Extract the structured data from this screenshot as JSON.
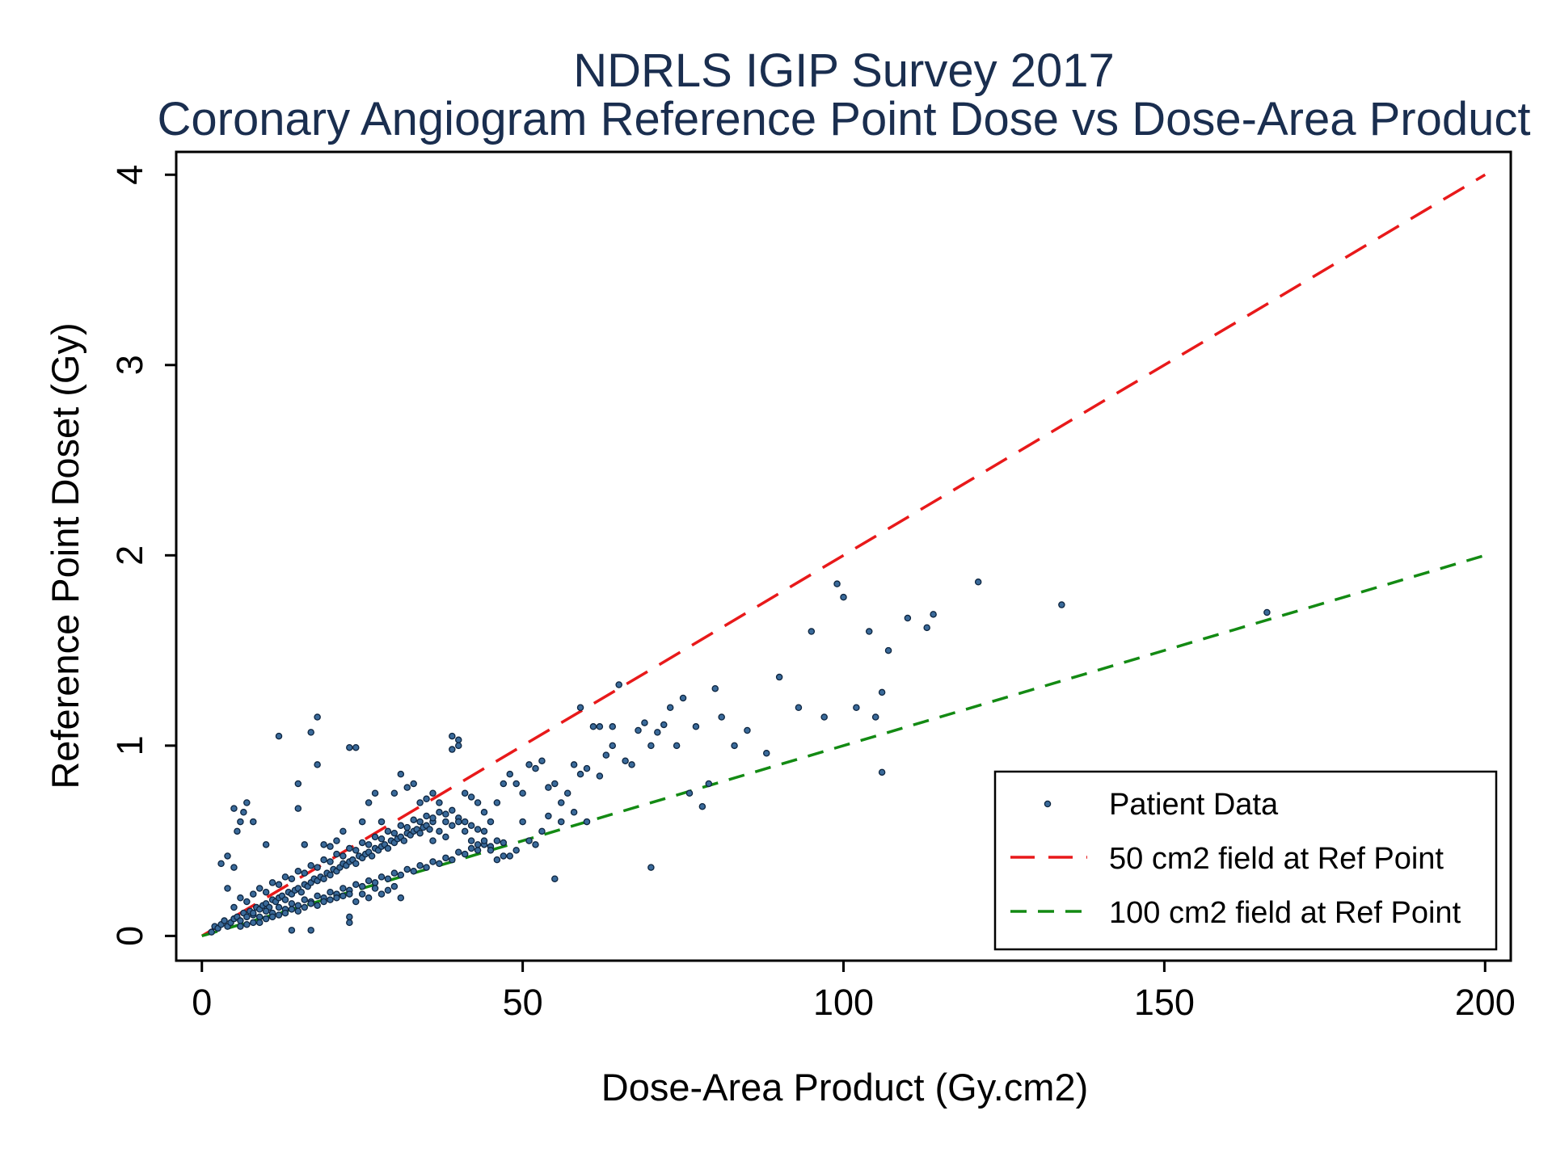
{
  "chart_data": {
    "type": "scatter",
    "title": "NDRLS IGIP Survey 2017",
    "subtitle": "Coronary Angiogram Reference Point Dose vs Dose-Area Product",
    "xlabel": "Dose-Area Product (Gy.cm2)",
    "ylabel": "Reference Point Doset (Gy)",
    "xlim": [
      -4,
      204
    ],
    "ylim": [
      -0.13,
      4.12
    ],
    "xticks": [
      0,
      50,
      100,
      150,
      200
    ],
    "yticks": [
      0,
      1,
      2,
      3,
      4
    ],
    "xtick_labels": [
      "0",
      "50",
      "100",
      "150",
      "200"
    ],
    "ytick_labels": [
      "0",
      "1",
      "2",
      "3",
      "4"
    ],
    "grid": false,
    "legend_position": "bottom-right",
    "colors": {
      "title": "#1a2e4f",
      "points_fill": "#3a6a9a",
      "points_stroke": "#0d2540",
      "line_50": "#e8191a",
      "line_100": "#138a13",
      "axis": "#000000"
    },
    "series": [
      {
        "name": "Patient Data",
        "kind": "scatter",
        "points": [
          [
            1.5,
            0.02
          ],
          [
            2,
            0.05
          ],
          [
            2.5,
            0.04
          ],
          [
            3,
            0.06
          ],
          [
            3.5,
            0.08
          ],
          [
            4,
            0.05
          ],
          [
            4.5,
            0.07
          ],
          [
            5,
            0.09
          ],
          [
            5.5,
            0.1
          ],
          [
            6,
            0.08
          ],
          [
            6.5,
            0.12
          ],
          [
            7,
            0.1
          ],
          [
            7.5,
            0.13
          ],
          [
            8,
            0.11
          ],
          [
            8.5,
            0.15
          ],
          [
            9,
            0.14
          ],
          [
            9.5,
            0.16
          ],
          [
            10,
            0.17
          ],
          [
            10.5,
            0.15
          ],
          [
            11,
            0.19
          ],
          [
            11.5,
            0.18
          ],
          [
            12,
            0.2
          ],
          [
            12.5,
            0.21
          ],
          [
            13,
            0.19
          ],
          [
            13.5,
            0.23
          ],
          [
            14,
            0.22
          ],
          [
            14.5,
            0.24
          ],
          [
            15,
            0.25
          ],
          [
            15.5,
            0.23
          ],
          [
            16,
            0.27
          ],
          [
            16.5,
            0.26
          ],
          [
            17,
            0.28
          ],
          [
            17.5,
            0.3
          ],
          [
            18,
            0.29
          ],
          [
            18.5,
            0.31
          ],
          [
            19,
            0.3
          ],
          [
            19.5,
            0.33
          ],
          [
            20,
            0.32
          ],
          [
            20.5,
            0.35
          ],
          [
            21,
            0.34
          ],
          [
            21.5,
            0.36
          ],
          [
            22,
            0.38
          ],
          [
            22.5,
            0.37
          ],
          [
            23,
            0.39
          ],
          [
            23.5,
            0.4
          ],
          [
            24,
            0.38
          ],
          [
            24.5,
            0.42
          ],
          [
            25,
            0.41
          ],
          [
            25.5,
            0.43
          ],
          [
            26,
            0.44
          ],
          [
            26.5,
            0.42
          ],
          [
            27,
            0.46
          ],
          [
            27.5,
            0.45
          ],
          [
            28,
            0.47
          ],
          [
            28.5,
            0.48
          ],
          [
            29,
            0.46
          ],
          [
            29.5,
            0.5
          ],
          [
            30,
            0.49
          ],
          [
            30.5,
            0.51
          ],
          [
            31,
            0.52
          ],
          [
            31.5,
            0.5
          ],
          [
            32,
            0.54
          ],
          [
            32.5,
            0.53
          ],
          [
            33,
            0.55
          ],
          [
            33.5,
            0.56
          ],
          [
            34,
            0.54
          ],
          [
            34.5,
            0.57
          ],
          [
            35,
            0.58
          ],
          [
            35.5,
            0.56
          ],
          [
            36,
            0.6
          ],
          [
            5,
            0.15
          ],
          [
            6,
            0.2
          ],
          [
            7,
            0.18
          ],
          [
            8,
            0.22
          ],
          [
            9,
            0.25
          ],
          [
            10,
            0.23
          ],
          [
            11,
            0.28
          ],
          [
            12,
            0.27
          ],
          [
            13,
            0.31
          ],
          [
            14,
            0.3
          ],
          [
            15,
            0.34
          ],
          [
            16,
            0.33
          ],
          [
            17,
            0.37
          ],
          [
            18,
            0.36
          ],
          [
            19,
            0.4
          ],
          [
            20,
            0.39
          ],
          [
            21,
            0.43
          ],
          [
            22,
            0.42
          ],
          [
            23,
            0.46
          ],
          [
            24,
            0.45
          ],
          [
            25,
            0.49
          ],
          [
            26,
            0.48
          ],
          [
            27,
            0.52
          ],
          [
            28,
            0.51
          ],
          [
            29,
            0.55
          ],
          [
            30,
            0.54
          ],
          [
            31,
            0.58
          ],
          [
            32,
            0.57
          ],
          [
            33,
            0.61
          ],
          [
            34,
            0.6
          ],
          [
            35,
            0.63
          ],
          [
            36,
            0.62
          ],
          [
            37,
            0.65
          ],
          [
            38,
            0.64
          ],
          [
            39,
            0.66
          ],
          [
            40,
            0.62
          ],
          [
            41,
            0.6
          ],
          [
            42,
            0.58
          ],
          [
            43,
            0.56
          ],
          [
            44,
            0.55
          ],
          [
            8,
            0.12
          ],
          [
            9,
            0.1
          ],
          [
            10,
            0.13
          ],
          [
            11,
            0.12
          ],
          [
            12,
            0.15
          ],
          [
            13,
            0.14
          ],
          [
            14,
            0.17
          ],
          [
            15,
            0.16
          ],
          [
            16,
            0.19
          ],
          [
            17,
            0.18
          ],
          [
            18,
            0.21
          ],
          [
            19,
            0.2
          ],
          [
            20,
            0.23
          ],
          [
            21,
            0.22
          ],
          [
            22,
            0.25
          ],
          [
            23,
            0.24
          ],
          [
            24,
            0.27
          ],
          [
            25,
            0.26
          ],
          [
            26,
            0.29
          ],
          [
            27,
            0.28
          ],
          [
            28,
            0.31
          ],
          [
            29,
            0.3
          ],
          [
            30,
            0.33
          ],
          [
            31,
            0.32
          ],
          [
            32,
            0.35
          ],
          [
            33,
            0.34
          ],
          [
            34,
            0.37
          ],
          [
            35,
            0.36
          ],
          [
            36,
            0.39
          ],
          [
            37,
            0.38
          ],
          [
            38,
            0.41
          ],
          [
            39,
            0.4
          ],
          [
            40,
            0.44
          ],
          [
            41,
            0.43
          ],
          [
            42,
            0.46
          ],
          [
            43,
            0.45
          ],
          [
            44,
            0.48
          ],
          [
            45,
            0.47
          ],
          [
            46,
            0.5
          ],
          [
            47,
            0.49
          ],
          [
            3,
            0.38
          ],
          [
            4,
            0.42
          ],
          [
            5,
            0.36
          ],
          [
            5.5,
            0.55
          ],
          [
            6,
            0.6
          ],
          [
            6.5,
            0.65
          ],
          [
            7,
            0.7
          ],
          [
            8,
            0.6
          ],
          [
            5,
            0.67
          ],
          [
            4,
            0.25
          ],
          [
            10,
            0.48
          ],
          [
            12,
            1.05
          ],
          [
            15,
            0.8
          ],
          [
            15,
            0.67
          ],
          [
            16,
            0.48
          ],
          [
            17,
            1.07
          ],
          [
            18,
            0.9
          ],
          [
            18,
            1.15
          ],
          [
            19,
            0.48
          ],
          [
            20,
            0.47
          ],
          [
            21,
            0.5
          ],
          [
            22,
            0.55
          ],
          [
            23,
            0.99
          ],
          [
            24,
            0.99
          ],
          [
            25,
            0.6
          ],
          [
            26,
            0.7
          ],
          [
            27,
            0.75
          ],
          [
            28,
            0.6
          ],
          [
            30,
            0.75
          ],
          [
            31,
            0.85
          ],
          [
            32,
            0.78
          ],
          [
            33,
            0.8
          ],
          [
            34,
            0.7
          ],
          [
            35,
            0.72
          ],
          [
            36,
            0.75
          ],
          [
            37,
            0.7
          ],
          [
            38,
            0.6
          ],
          [
            39,
            1.05
          ],
          [
            40,
            1.03
          ],
          [
            40,
            1.0
          ],
          [
            39,
            0.98
          ],
          [
            41,
            0.75
          ],
          [
            42,
            0.73
          ],
          [
            43,
            0.7
          ],
          [
            44,
            0.65
          ],
          [
            45,
            0.6
          ],
          [
            46,
            0.7
          ],
          [
            47,
            0.8
          ],
          [
            48,
            0.85
          ],
          [
            49,
            0.8
          ],
          [
            50,
            0.75
          ],
          [
            51,
            0.9
          ],
          [
            52,
            0.88
          ],
          [
            53,
            0.92
          ],
          [
            54,
            0.78
          ],
          [
            55,
            0.8
          ],
          [
            56,
            0.7
          ],
          [
            57,
            0.75
          ],
          [
            58,
            0.9
          ],
          [
            59,
            0.85
          ],
          [
            60,
            0.88
          ],
          [
            61,
            1.1
          ],
          [
            62,
            0.84
          ],
          [
            63,
            0.95
          ],
          [
            64,
            1.0
          ],
          [
            65,
            1.32
          ],
          [
            66,
            0.92
          ],
          [
            67,
            0.9
          ],
          [
            68,
            1.08
          ],
          [
            69,
            1.12
          ],
          [
            70,
            1.0
          ],
          [
            71,
            1.07
          ],
          [
            72,
            1.11
          ],
          [
            73,
            1.2
          ],
          [
            74,
            1.0
          ],
          [
            75,
            1.25
          ],
          [
            76,
            0.75
          ],
          [
            77,
            1.1
          ],
          [
            78,
            0.68
          ],
          [
            79,
            0.8
          ],
          [
            80,
            1.3
          ],
          [
            81,
            1.15
          ],
          [
            83,
            1.0
          ],
          [
            85,
            1.08
          ],
          [
            88,
            0.96
          ],
          [
            90,
            1.36
          ],
          [
            93,
            1.2
          ],
          [
            95,
            1.6
          ],
          [
            97,
            1.15
          ],
          [
            99,
            1.85
          ],
          [
            100,
            1.78
          ],
          [
            102,
            1.2
          ],
          [
            104,
            1.6
          ],
          [
            105,
            1.15
          ],
          [
            106,
            1.28
          ],
          [
            106,
            0.86
          ],
          [
            107,
            1.5
          ],
          [
            110,
            1.67
          ],
          [
            113,
            1.62
          ],
          [
            114,
            1.69
          ],
          [
            121,
            1.86
          ],
          [
            134,
            1.74
          ],
          [
            166,
            1.7
          ],
          [
            59,
            1.2
          ],
          [
            62,
            1.1
          ],
          [
            64,
            1.1
          ],
          [
            70,
            0.36
          ],
          [
            55,
            0.3
          ],
          [
            52,
            0.48
          ],
          [
            48,
            0.42
          ],
          [
            6,
            0.05
          ],
          [
            7,
            0.06
          ],
          [
            8,
            0.07
          ],
          [
            9,
            0.07
          ],
          [
            10,
            0.09
          ],
          [
            11,
            0.1
          ],
          [
            12,
            0.11
          ],
          [
            13,
            0.12
          ],
          [
            14,
            0.14
          ],
          [
            15,
            0.13
          ],
          [
            16,
            0.15
          ],
          [
            17,
            0.17
          ],
          [
            18,
            0.16
          ],
          [
            19,
            0.18
          ],
          [
            20,
            0.19
          ],
          [
            21,
            0.2
          ],
          [
            22,
            0.21
          ],
          [
            23,
            0.22
          ],
          [
            23,
            0.07
          ],
          [
            23,
            0.1
          ],
          [
            17,
            0.03
          ],
          [
            14,
            0.03
          ],
          [
            24,
            0.18
          ],
          [
            25,
            0.22
          ],
          [
            26,
            0.2
          ],
          [
            27,
            0.25
          ],
          [
            28,
            0.22
          ],
          [
            29,
            0.24
          ],
          [
            30,
            0.26
          ],
          [
            31,
            0.2
          ],
          [
            36,
            0.5
          ],
          [
            37,
            0.55
          ],
          [
            38,
            0.52
          ],
          [
            39,
            0.58
          ],
          [
            40,
            0.6
          ],
          [
            41,
            0.55
          ],
          [
            42,
            0.5
          ],
          [
            43,
            0.48
          ],
          [
            44,
            0.5
          ],
          [
            45,
            0.45
          ],
          [
            46,
            0.4
          ],
          [
            47,
            0.42
          ],
          [
            49,
            0.45
          ],
          [
            50,
            0.6
          ],
          [
            51,
            0.5
          ],
          [
            53,
            0.55
          ],
          [
            54,
            0.63
          ],
          [
            56,
            0.6
          ],
          [
            58,
            0.65
          ],
          [
            60,
            0.6
          ]
        ]
      },
      {
        "name": "50 cm2 field at Ref Point",
        "kind": "line",
        "x": [
          0,
          200
        ],
        "y": [
          0,
          4
        ]
      },
      {
        "name": "100 cm2 field at Ref Point",
        "kind": "line",
        "x": [
          0,
          200
        ],
        "y": [
          0,
          2
        ]
      }
    ]
  }
}
